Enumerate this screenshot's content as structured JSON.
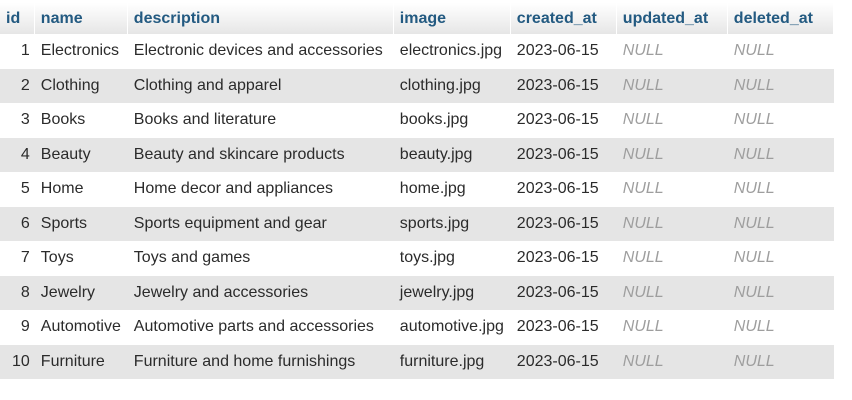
{
  "table": {
    "columns": [
      "id",
      "name",
      "description",
      "image",
      "created_at",
      "updated_at",
      "deleted_at"
    ],
    "rows": [
      {
        "id": "1",
        "name": "Electronics",
        "description": "Electronic devices and accessories",
        "image": "electronics.jpg",
        "created_at": "2023-06-15",
        "updated_at": "NULL",
        "deleted_at": "NULL"
      },
      {
        "id": "2",
        "name": "Clothing",
        "description": "Clothing and apparel",
        "image": "clothing.jpg",
        "created_at": "2023-06-15",
        "updated_at": "NULL",
        "deleted_at": "NULL"
      },
      {
        "id": "3",
        "name": "Books",
        "description": "Books and literature",
        "image": "books.jpg",
        "created_at": "2023-06-15",
        "updated_at": "NULL",
        "deleted_at": "NULL"
      },
      {
        "id": "4",
        "name": "Beauty",
        "description": "Beauty and skincare products",
        "image": "beauty.jpg",
        "created_at": "2023-06-15",
        "updated_at": "NULL",
        "deleted_at": "NULL"
      },
      {
        "id": "5",
        "name": "Home",
        "description": "Home decor and appliances",
        "image": "home.jpg",
        "created_at": "2023-06-15",
        "updated_at": "NULL",
        "deleted_at": "NULL"
      },
      {
        "id": "6",
        "name": "Sports",
        "description": "Sports equipment and gear",
        "image": "sports.jpg",
        "created_at": "2023-06-15",
        "updated_at": "NULL",
        "deleted_at": "NULL"
      },
      {
        "id": "7",
        "name": "Toys",
        "description": "Toys and games",
        "image": "toys.jpg",
        "created_at": "2023-06-15",
        "updated_at": "NULL",
        "deleted_at": "NULL"
      },
      {
        "id": "8",
        "name": "Jewelry",
        "description": "Jewelry and accessories",
        "image": "jewelry.jpg",
        "created_at": "2023-06-15",
        "updated_at": "NULL",
        "deleted_at": "NULL"
      },
      {
        "id": "9",
        "name": "Automotive",
        "description": "Automotive parts and accessories",
        "image": "automotive.jpg",
        "created_at": "2023-06-15",
        "updated_at": "NULL",
        "deleted_at": "NULL"
      },
      {
        "id": "10",
        "name": "Furniture",
        "description": "Furniture and home furnishings",
        "image": "furniture.jpg",
        "created_at": "2023-06-15",
        "updated_at": "NULL",
        "deleted_at": "NULL"
      }
    ]
  },
  "colors": {
    "header_text": "#235a81",
    "row_alt": "#e5e5e5",
    "null_text": "#9e9e9e"
  }
}
